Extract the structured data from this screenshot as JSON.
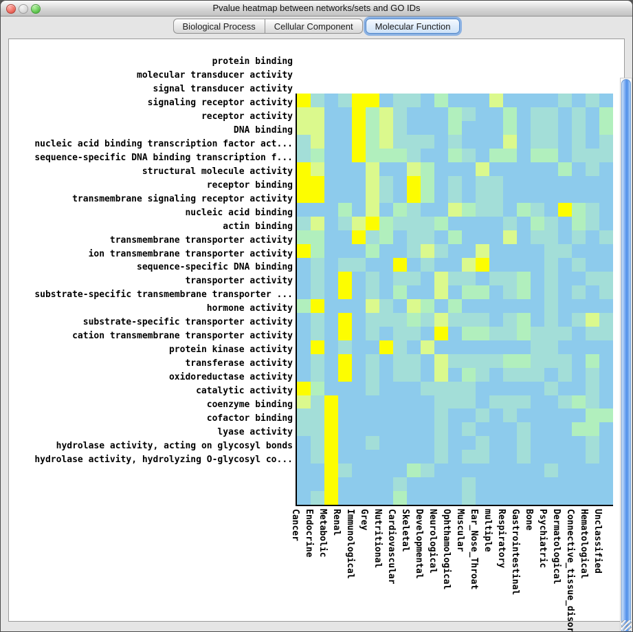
{
  "window": {
    "title": "Pvalue heatmap between networks/sets and GO IDs"
  },
  "tabs": [
    {
      "label": "Biological Process",
      "selected": false
    },
    {
      "label": "Cellular Component",
      "selected": false
    },
    {
      "label": "Molecular Function",
      "selected": true
    }
  ],
  "icons": {
    "close_button": "mac-close-icon",
    "minimize_button": "mac-minimize-icon",
    "zoom_button": "mac-zoom-icon",
    "scroll_down": "▼",
    "scroll_left": "◀",
    "scroll_right": "▶"
  },
  "chart_data": {
    "type": "heatmap",
    "title": "Pvalue heatmap between networks/sets and GO IDs",
    "tab_shown": "Molecular Function",
    "x_categories": [
      "Cancer",
      "Endocrine",
      "Metabolic",
      "Renal",
      "Immunological",
      "Grey",
      "Nutritional",
      "Cardiovascular",
      "Skeletal",
      "Developmental",
      "Neurological",
      "Ophthamological",
      "Muscular",
      "Ear_Nose_Throat",
      "multiple",
      "Respiratory",
      "Gastrointestinal",
      "Bone",
      "Psychiatric",
      "Dermatological",
      "Connective_tissue_disorder",
      "Hematological",
      "Unclassified"
    ],
    "y_categories": [
      "protein binding",
      "molecular transducer activity",
      "signal transducer activity",
      "signaling receptor activity",
      "receptor activity",
      "DNA binding",
      "nucleic acid binding transcription factor act...",
      "sequence-specific DNA binding transcription f...",
      "structural molecule activity",
      "receptor binding",
      "transmembrane signaling receptor activity",
      "nucleic acid binding",
      "actin binding",
      "transmembrane transporter activity",
      "ion transmembrane transporter activity",
      "sequence-specific DNA binding",
      "transporter activity",
      "substrate-specific transmembrane transporter ...",
      "hormone activity",
      "substrate-specific transporter activity",
      "cation transmembrane transporter activity",
      "protein kinase activity",
      "transferase activity",
      "oxidoreductase activity",
      "catalytic activity",
      "coenzyme binding",
      "cofactor binding",
      "lyase activity",
      "hydrolase activity, acting on glycosyl bonds",
      "hydrolase activity, hydrolyzing O-glycosyl co..."
    ],
    "palette": {
      "b": "#8dcbec",
      "t": "#a3ded8",
      "g": "#b1efbd",
      "y": "#dbf98d",
      "Y": "#fdfd00"
    },
    "cells": [
      "YtbtYYbttbgbbbybbbbtbtb",
      "yybbYgytbbbgtbbgbttbtbg",
      "yybbYgytbbbgbbbgbttbtbg",
      "tybbYgytttbtbbbybttbtbt",
      "tgbbYgggtbbgtbggbggbttt",
      "Yybbbybbygbbbybbbbbgbtb",
      "YYbbbytbYgbtbttbbbbbbbb",
      "YYbbbytbYgbtbttbbbbbbbb",
      "bbbgbybgtbbygttbgtbYgtb",
      "tybtyYgtttgbbbbtbgtbgtb",
      "ggbbYtgbttbgbbbybttbtbt",
      "Ygbbbgbbtytbbybbbbttbbb",
      "btbttbbYbtbbyYbbbbtbtbb",
      "btbYbtbttbyttbttgbtbbtt",
      "btbYbtbgbbybggbtgbtbtbt",
      "gYbbbytbygbgbbbbbbtbbbb",
      "btbYbtttgtytttbtgbtbtyt",
      "btbYbtbttbYbggttgtttbtt",
      "bYbtbbYtbybbbbbbbttbbbb",
      "btbYbtbttbyttttggtttbgb",
      "btbYbtbttbybgtbtttbtbtb",
      "Ygbbbtbbbttttbbbbbtbbtb",
      "ytYbbbbbbbtttbtttbbtgtb",
      "ttYbbbbbbbtbbtbtbbbbbgg",
      "ttYbbbbbbbtbtbbbtbbbggb",
      "btYbbtbbbbtbbtbbtbbbbtb",
      "btYbbbbbbbtbttbbtbbbbtb",
      "bbYtbbbbgtbbbbbbbbtbbbb",
      "bbYbbbbtbbbbtbbbbbbbbbb",
      "btYbbbbgbbbbtbbbbbbbbbb"
    ],
    "layout": {
      "grid": "off",
      "x_tick_rotation": 90,
      "legend": "none"
    }
  }
}
